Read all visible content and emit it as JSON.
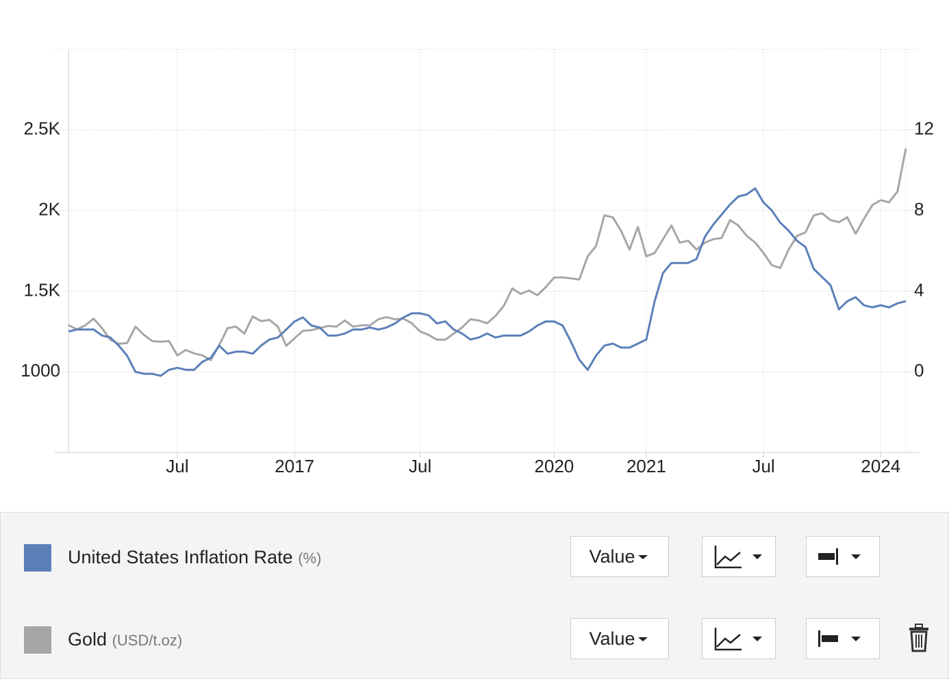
{
  "chart_data": {
    "type": "line",
    "categories": [
      null,
      null,
      null,
      null,
      null,
      null,
      null,
      null,
      null,
      null,
      null,
      null,
      null,
      "Jul",
      null,
      null,
      null,
      null,
      null,
      null,
      null,
      null,
      null,
      null,
      null,
      null,
      null,
      "2017",
      null,
      null,
      null,
      null,
      null,
      null,
      null,
      null,
      null,
      null,
      null,
      null,
      null,
      null,
      "Jul",
      null,
      null,
      null,
      null,
      null,
      null,
      null,
      null,
      null,
      null,
      null,
      null,
      null,
      null,
      null,
      "2020",
      null,
      null,
      null,
      null,
      null,
      null,
      null,
      null,
      null,
      null,
      "2021",
      null,
      null,
      null,
      null,
      null,
      null,
      null,
      null,
      null,
      null,
      null,
      null,
      null,
      "Jul",
      null,
      null,
      null,
      null,
      null,
      null,
      null,
      null,
      null,
      null,
      null,
      null,
      null,
      "2024",
      null,
      null,
      null
    ],
    "series": [
      {
        "name": "United States Inflation Rate",
        "color": "#5b80b8",
        "axis": "y2",
        "values": [
          2.0,
          2.1,
          2.1,
          2.1,
          1.8,
          1.7,
          1.3,
          0.8,
          0.0,
          -0.1,
          -0.1,
          -0.2,
          0.1,
          0.2,
          0.1,
          0.1,
          0.5,
          0.7,
          1.3,
          0.9,
          1.0,
          1.0,
          0.9,
          1.3,
          1.6,
          1.7,
          2.1,
          2.5,
          2.7,
          2.3,
          2.2,
          1.8,
          1.8,
          1.9,
          2.1,
          2.1,
          2.2,
          2.1,
          2.2,
          2.4,
          2.7,
          2.9,
          2.9,
          2.8,
          2.4,
          2.5,
          2.1,
          1.9,
          1.6,
          1.7,
          1.9,
          1.7,
          1.8,
          1.8,
          1.8,
          2.0,
          2.3,
          2.5,
          2.5,
          2.3,
          1.5,
          0.6,
          0.1,
          0.8,
          1.3,
          1.4,
          1.2,
          1.2,
          1.4,
          1.6,
          3.5,
          4.9,
          5.4,
          5.4,
          5.4,
          5.6,
          6.7,
          7.3,
          7.8,
          8.3,
          8.7,
          8.8,
          9.1,
          8.4,
          8.0,
          7.4,
          7.0,
          6.5,
          6.2,
          5.1,
          4.7,
          4.3,
          3.1,
          3.5,
          3.7,
          3.3,
          3.2,
          3.3,
          3.2,
          3.4,
          3.5
        ]
      },
      {
        "name": "Gold",
        "color": "#a6a6a6",
        "values": [
          1290,
          1263,
          1288,
          1330,
          1271,
          1199,
          1174,
          1178,
          1280,
          1229,
          1191,
          1186,
          1191,
          1102,
          1136,
          1114,
          1102,
          1072,
          1165,
          1271,
          1280,
          1237,
          1343,
          1314,
          1322,
          1280,
          1161,
          1208,
          1254,
          1258,
          1271,
          1284,
          1280,
          1318,
          1280,
          1288,
          1288,
          1326,
          1339,
          1326,
          1330,
          1301,
          1250,
          1229,
          1199,
          1199,
          1237,
          1275,
          1326,
          1318,
          1301,
          1347,
          1411,
          1517,
          1483,
          1504,
          1475,
          1525,
          1585,
          1585,
          1580,
          1572,
          1716,
          1780,
          1970,
          1958,
          1873,
          1758,
          1898,
          1716,
          1737,
          1822,
          1907,
          1801,
          1813,
          1758,
          1801,
          1822,
          1830,
          1941,
          1907,
          1843,
          1801,
          1737,
          1661,
          1644,
          1758,
          1843,
          1864,
          1970,
          1983,
          1941,
          1928,
          1958,
          1856,
          1949,
          2034,
          2064,
          2051,
          2119,
          2386
        ]
      }
    ],
    "ylim": [
      500,
      3000
    ],
    "yticks": [
      1000,
      {
        "value": 1500,
        "label": "1.5K"
      },
      {
        "value": 2000,
        "label": "2K"
      },
      {
        "value": 2500,
        "label": "2.5K"
      }
    ],
    "y2lim": [
      -4,
      16
    ],
    "y2ticks": [
      0,
      4,
      8,
      12
    ],
    "grid": true
  },
  "legend_panel": {
    "rows": [
      {
        "unit": "(%)",
        "mode": "Value"
      },
      {
        "unit": "(USD/t.oz)",
        "mode": "Value"
      }
    ]
  }
}
